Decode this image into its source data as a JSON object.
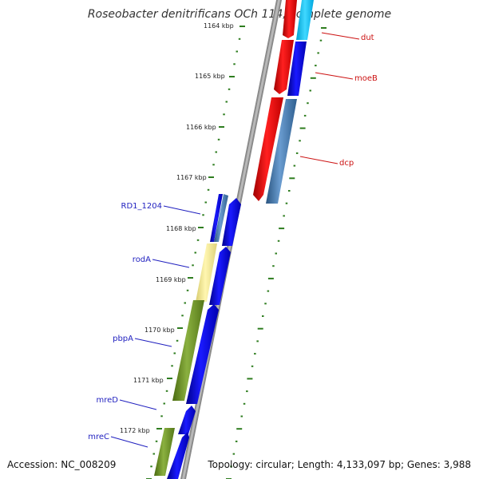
{
  "title": "Roseobacter denitrificans OCh 114, complete genome",
  "footer": {
    "accession": "Accession: NC_008209",
    "summary": "Topology: circular; Length: 4,133,097 bp; Genes: 3,988"
  },
  "colors": {
    "tick": "#2e7d1f",
    "backbone": "#8a8a8a",
    "label_left": "#1f1fbf",
    "label_right": "#cc1111",
    "forward_blue": "#0a0ae6",
    "reverse_red": "#f01010",
    "steel_blue": "#4a7fb5",
    "cyan": "#1ec8f5",
    "olive": "#6b8e23",
    "pale_yellow": "#f0e68c"
  },
  "ticks": [
    "1164 kbp",
    "1165 kbp",
    "1166 kbp",
    "1167 kbp",
    "1168 kbp",
    "1169 kbp",
    "1170 kbp",
    "1171 kbp",
    "1172 kbp"
  ],
  "genes_left": [
    {
      "label": "RD1_1204"
    },
    {
      "label": "rodA"
    },
    {
      "label": "pbpA"
    },
    {
      "label": "mreD"
    },
    {
      "label": "mreC"
    }
  ],
  "genes_right": [
    {
      "label": "dut"
    },
    {
      "label": "moeB"
    },
    {
      "label": "dcp"
    }
  ]
}
